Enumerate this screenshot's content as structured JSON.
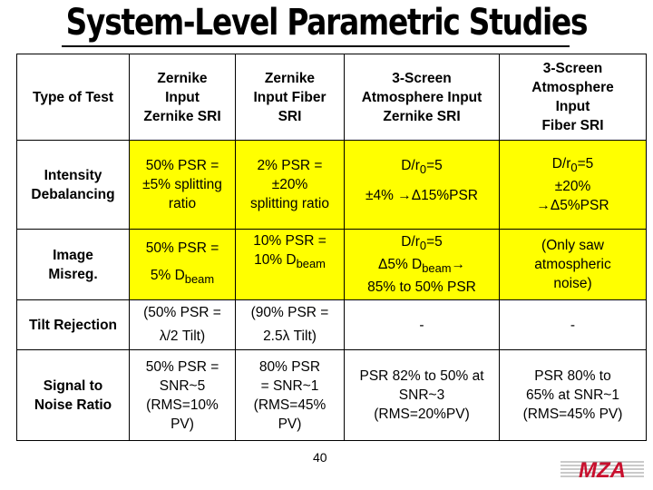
{
  "title": "System-Level Parametric Studies",
  "header": {
    "type_label": "Type of Test",
    "col1": [
      "Zernike",
      "Input",
      "Zernike SRI"
    ],
    "col2": [
      "Zernike",
      "Input Fiber",
      "SRI"
    ],
    "col3": [
      "3-Screen",
      "Atmosphere Input",
      "Zernike SRI"
    ],
    "col4": [
      "3-Screen",
      "Atmosphere",
      "Input",
      "Fiber SRI"
    ]
  },
  "rows": [
    {
      "label": [
        "Intensity",
        "Debalancing"
      ],
      "c1": [
        "50% PSR =",
        "±5% splitting",
        "ratio"
      ],
      "c2": [
        "2% PSR =",
        "±20%",
        "splitting ratio"
      ],
      "c3": {
        "a": "D/r",
        "sub": "0",
        "b": "=5",
        "line2": "±4% →Δ15%PSR"
      },
      "c4": {
        "a": "D/r",
        "sub": "0",
        "b": "=5",
        "line2": "±20%",
        "line3": "→Δ5%PSR"
      }
    },
    {
      "label": [
        "Image",
        "Misreg."
      ],
      "c1": {
        "line1": "50% PSR =",
        "a": "5% D",
        "sub": "beam"
      },
      "c2": {
        "line1": "10% PSR =",
        "a": "10% D",
        "sub": "beam"
      },
      "c3": {
        "a": "D/r",
        "sub": "0",
        "b": "=5",
        "line2a": "Δ5% D",
        "line2sub": "beam",
        "line2b": "→",
        "line3": "85% to 50% PSR"
      },
      "c4": [
        "(Only saw",
        "atmospheric",
        "noise)"
      ]
    },
    {
      "label": [
        "Tilt Rejection"
      ],
      "c1": [
        "(50% PSR =",
        "λ/2 Tilt)"
      ],
      "c2": [
        "(90% PSR =",
        "2.5λ Tilt)"
      ],
      "c3": [
        "-"
      ],
      "c4": [
        "-"
      ]
    },
    {
      "label": [
        "Signal to",
        "Noise Ratio"
      ],
      "c1": [
        "50% PSR =",
        "SNR~5",
        "(RMS=10%",
        "PV)"
      ],
      "c2": [
        "80% PSR",
        "= SNR~1",
        "(RMS=45%",
        "PV)"
      ],
      "c3": [
        "PSR 82% to 50% at",
        "SNR~3",
        "(RMS=20%PV)"
      ],
      "c4": [
        "PSR 80% to",
        "65% at SNR~1",
        "(RMS=45% PV)"
      ]
    }
  ],
  "page_number": "40",
  "logo_text": "MZA",
  "colors": {
    "highlight": "#ffff00",
    "logo_red": "#c8102e"
  }
}
